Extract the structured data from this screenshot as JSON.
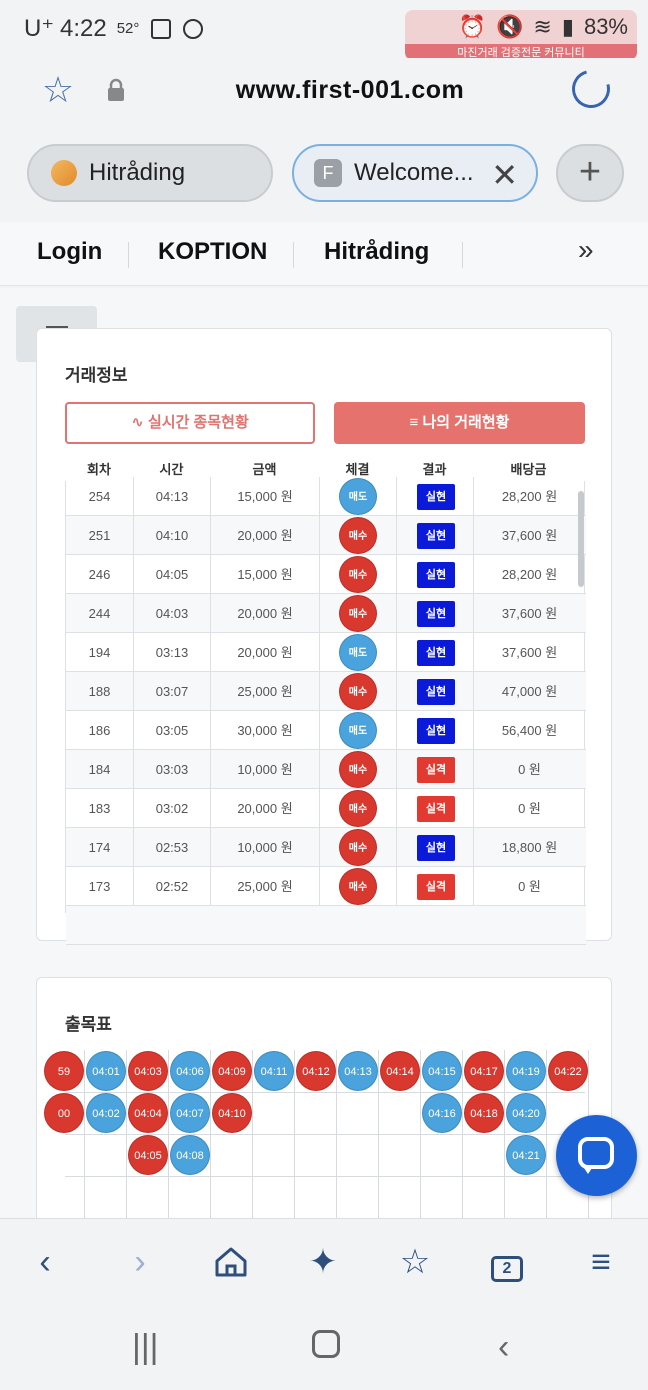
{
  "status": {
    "carrier": "U⁺",
    "time": "4:22",
    "temp": "52°",
    "battery": "83%"
  },
  "watermark": {
    "title": "마진",
    "subtitle": "마진거래 검증전문 커뮤니티"
  },
  "browser": {
    "url": "www.first-001.com",
    "tabs": [
      {
        "title": "Hitråding"
      },
      {
        "title": "Welcome...",
        "favicon_letter": "F"
      }
    ],
    "bookmarks": [
      "Login",
      "KOPTION",
      "Hitråding"
    ]
  },
  "trade_info": {
    "title": "거래정보",
    "btn_live": "∿ 실시간 종목현황",
    "btn_my": "≡ 나의 거래현황",
    "headers": [
      "회차",
      "시간",
      "금액",
      "체결",
      "결과",
      "배당금"
    ],
    "rows": [
      {
        "round": "254",
        "time": "04:13",
        "amount": "15,000 원",
        "dir": "매도",
        "dir_type": "sell",
        "result": "실현",
        "result_type": "win",
        "payout": "28,200 원"
      },
      {
        "round": "251",
        "time": "04:10",
        "amount": "20,000 원",
        "dir": "매수",
        "dir_type": "buy",
        "result": "실현",
        "result_type": "win",
        "payout": "37,600 원"
      },
      {
        "round": "246",
        "time": "04:05",
        "amount": "15,000 원",
        "dir": "매수",
        "dir_type": "buy",
        "result": "실현",
        "result_type": "win",
        "payout": "28,200 원"
      },
      {
        "round": "244",
        "time": "04:03",
        "amount": "20,000 원",
        "dir": "매수",
        "dir_type": "buy",
        "result": "실현",
        "result_type": "win",
        "payout": "37,600 원"
      },
      {
        "round": "194",
        "time": "03:13",
        "amount": "20,000 원",
        "dir": "매도",
        "dir_type": "sell",
        "result": "실현",
        "result_type": "win",
        "payout": "37,600 원"
      },
      {
        "round": "188",
        "time": "03:07",
        "amount": "25,000 원",
        "dir": "매수",
        "dir_type": "buy",
        "result": "실현",
        "result_type": "win",
        "payout": "47,000 원"
      },
      {
        "round": "186",
        "time": "03:05",
        "amount": "30,000 원",
        "dir": "매도",
        "dir_type": "sell",
        "result": "실현",
        "result_type": "win",
        "payout": "56,400 원"
      },
      {
        "round": "184",
        "time": "03:03",
        "amount": "10,000 원",
        "dir": "매수",
        "dir_type": "buy",
        "result": "실격",
        "result_type": "lose",
        "payout": "0 원"
      },
      {
        "round": "183",
        "time": "03:02",
        "amount": "20,000 원",
        "dir": "매수",
        "dir_type": "buy",
        "result": "실격",
        "result_type": "lose",
        "payout": "0 원"
      },
      {
        "round": "174",
        "time": "02:53",
        "amount": "10,000 원",
        "dir": "매수",
        "dir_type": "buy",
        "result": "실현",
        "result_type": "win",
        "payout": "18,800 원"
      },
      {
        "round": "173",
        "time": "02:52",
        "amount": "25,000 원",
        "dir": "매수",
        "dir_type": "buy",
        "result": "실격",
        "result_type": "lose",
        "payout": "0 원"
      }
    ]
  },
  "chart_table": {
    "title": "출목표",
    "columns": [
      [
        {
          "t": "59",
          "c": "r"
        },
        {
          "t": "00",
          "c": "r"
        }
      ],
      [
        {
          "t": "04:01",
          "c": "b"
        },
        {
          "t": "04:02",
          "c": "b"
        }
      ],
      [
        {
          "t": "04:03",
          "c": "r"
        },
        {
          "t": "04:04",
          "c": "r"
        },
        {
          "t": "04:05",
          "c": "r"
        }
      ],
      [
        {
          "t": "04:06",
          "c": "b"
        },
        {
          "t": "04:07",
          "c": "b"
        },
        {
          "t": "04:08",
          "c": "b"
        }
      ],
      [
        {
          "t": "04:09",
          "c": "r"
        },
        {
          "t": "04:10",
          "c": "r"
        }
      ],
      [
        {
          "t": "04:11",
          "c": "b"
        }
      ],
      [
        {
          "t": "04:12",
          "c": "r"
        }
      ],
      [
        {
          "t": "04:13",
          "c": "b"
        }
      ],
      [
        {
          "t": "04:14",
          "c": "r"
        }
      ],
      [
        {
          "t": "04:15",
          "c": "b"
        },
        {
          "t": "04:16",
          "c": "b"
        }
      ],
      [
        {
          "t": "04:17",
          "c": "r"
        },
        {
          "t": "04:18",
          "c": "r"
        }
      ],
      [
        {
          "t": "04:19",
          "c": "b"
        },
        {
          "t": "04:20",
          "c": "b"
        },
        {
          "t": "04:21",
          "c": "b"
        }
      ],
      [
        {
          "t": "04:22",
          "c": "r"
        }
      ]
    ]
  },
  "bottom_nav": {
    "tab_count": "2"
  },
  "colors": {
    "buy": "#d9382f",
    "sell": "#4aa3dc",
    "win": "#0a1ad8",
    "lose": "#e23a30",
    "accent": "#e5726d"
  }
}
